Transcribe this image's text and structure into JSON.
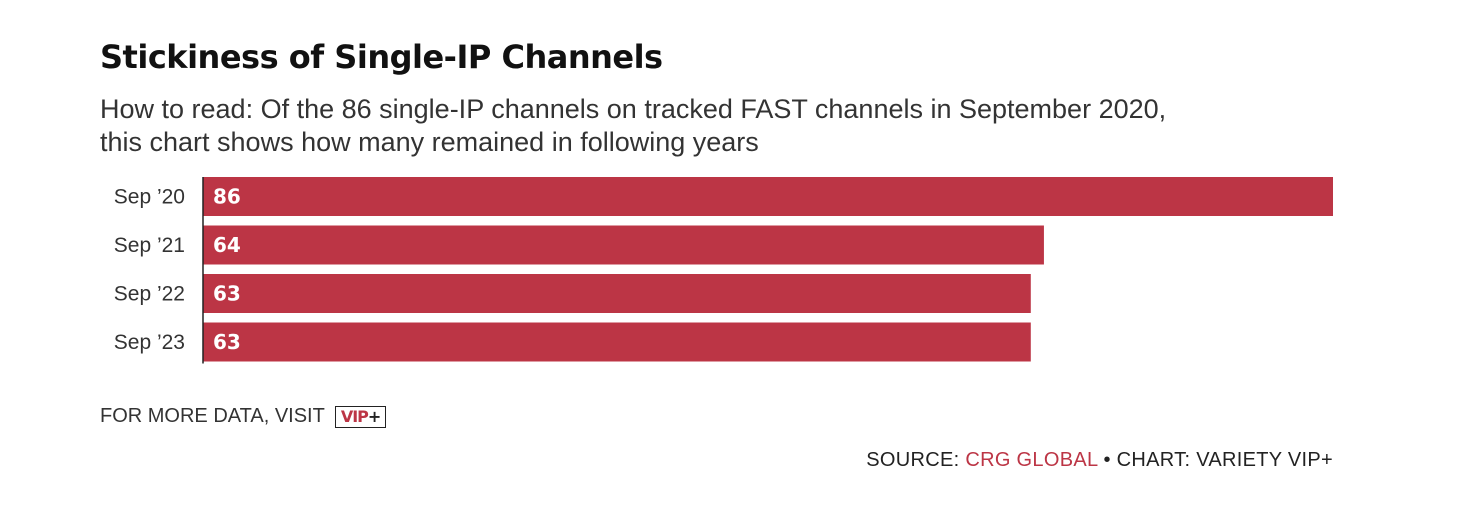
{
  "title": "Stickiness of Single-IP Channels",
  "subtitle": {
    "line1": "How to read: Of the 86 single-IP channels on tracked FAST channels in September 2020,",
    "line2": "this chart shows how many remained in following years"
  },
  "chart_data": {
    "type": "bar",
    "orientation": "horizontal",
    "categories": [
      "Sep ’20",
      "Sep ’21",
      "Sep ’22",
      "Sep ’23"
    ],
    "values": [
      86,
      64,
      63,
      63
    ],
    "xlim": [
      0,
      86
    ],
    "grid": false,
    "data_labels": true,
    "bar_color": "#bc3545"
  },
  "footer": {
    "more_data_text": "FOR MORE DATA, VISIT",
    "badge_vip": "VIP",
    "badge_plus": "+",
    "source_prefix": "SOURCE: ",
    "source_name": "CRG GLOBAL",
    "chart_credit": " • CHART: VARIETY VIP+"
  },
  "colors": {
    "accent": "#bc3545",
    "text": "#222222"
  }
}
